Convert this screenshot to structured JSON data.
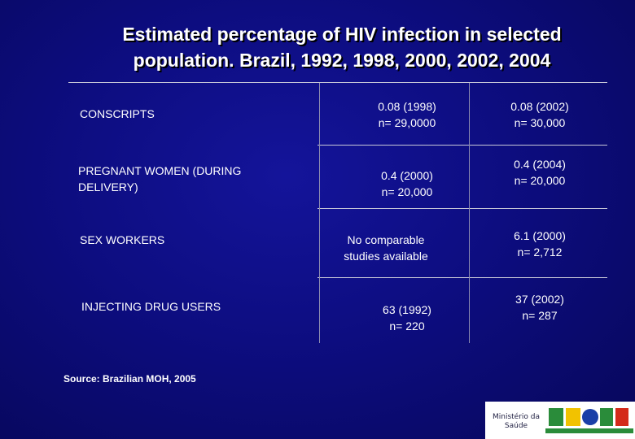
{
  "title": {
    "line1": "Estimated percentage of HIV infection in selected",
    "line2": "population. Brazil, 1992, 1998, 2000, 2002, 2004"
  },
  "rows": [
    {
      "label": "CONSCRIPTS",
      "col1": [
        "0.08 (1998)",
        "n= 29,0000"
      ],
      "col2": [
        "0.08 (2002)",
        "n= 30,000"
      ]
    },
    {
      "label": "PREGNANT WOMEN (DURING DELIVERY)",
      "label_lines": [
        "PREGNANT WOMEN (DURING",
        "DELIVERY)"
      ],
      "col1": [
        "0.4 (2000)",
        "n= 20,000"
      ],
      "col2": [
        "0.4 (2004)",
        "n= 20,000"
      ]
    },
    {
      "label": "SEX WORKERS",
      "col1": [
        "No comparable",
        "studies available"
      ],
      "col2": [
        "6.1 (2000)",
        "n= 2,712"
      ]
    },
    {
      "label": "INJECTING DRUG USERS",
      "col1": [
        "63 (1992)",
        "n= 220"
      ],
      "col2": [
        "37 (2002)",
        "n= 287"
      ]
    }
  ],
  "source": "Source: Brazilian MOH, 2005",
  "logo": {
    "ministry_line1": "Ministério da",
    "ministry_line2": "Saúde",
    "colors": {
      "green": "#2a8c3a",
      "yellow": "#f2c200",
      "blue": "#1a3fa8",
      "red": "#d42a1a"
    }
  }
}
